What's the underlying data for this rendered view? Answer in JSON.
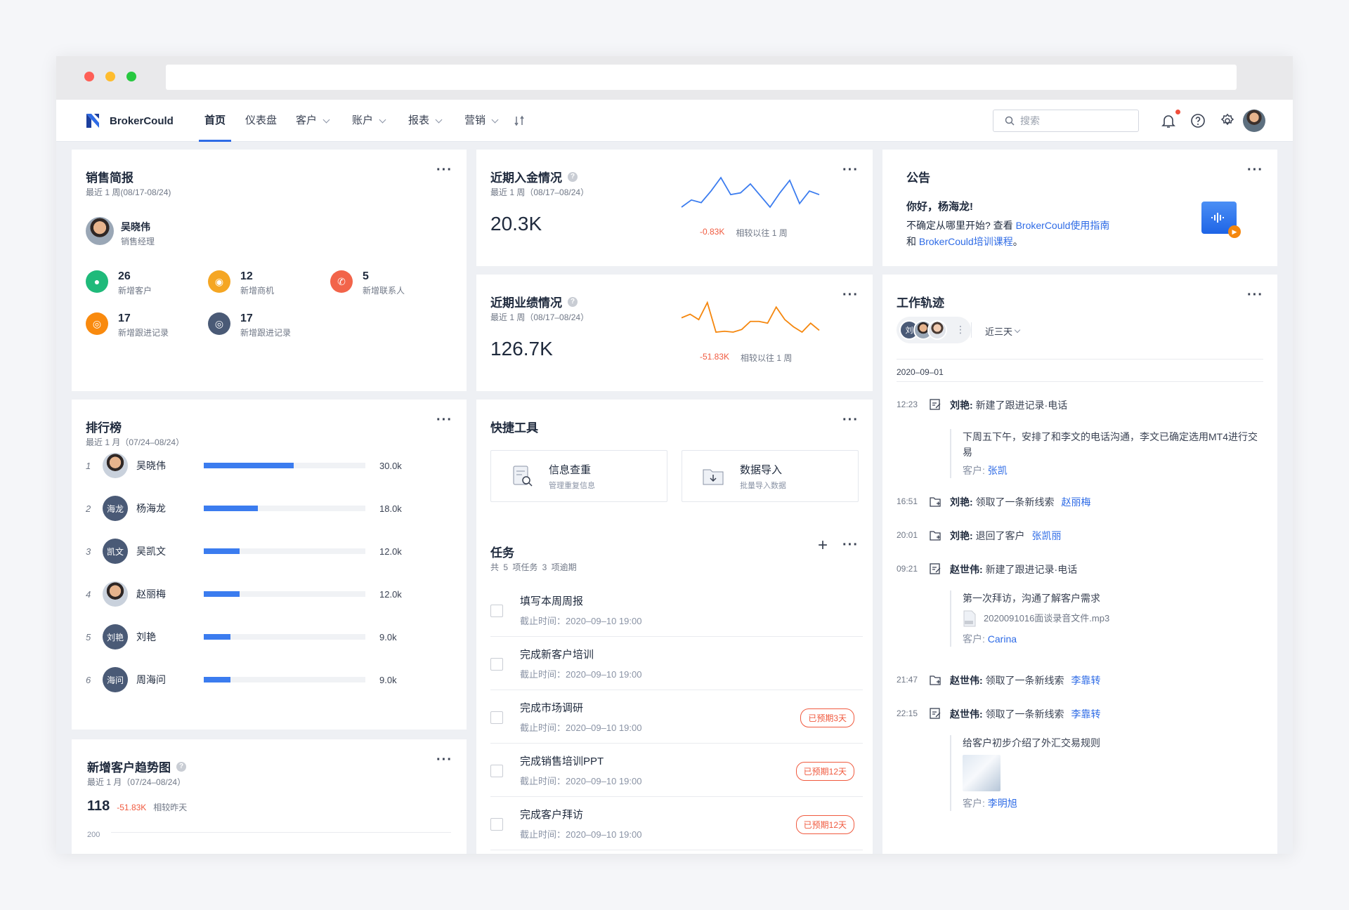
{
  "nav": {
    "brand": "BrokerCould",
    "items": [
      {
        "label": "首页"
      },
      {
        "label": "仪表盘"
      },
      {
        "label": "客户"
      },
      {
        "label": "账户"
      },
      {
        "label": "报表"
      },
      {
        "label": "营销"
      }
    ],
    "search_placeholder": "搜索"
  },
  "sales": {
    "title": "销售简报",
    "subtitle": "最近 1 周(08/17-08/24)",
    "person_name": "吴晓伟",
    "person_role": "销售经理",
    "stats": [
      {
        "value": "26",
        "label": "新增客户",
        "color": "#1fba7a",
        "icon": "user-group-icon"
      },
      {
        "value": "12",
        "label": "新增商机",
        "color": "#f5a623",
        "icon": "lightbulb-icon"
      },
      {
        "value": "5",
        "label": "新增联系人",
        "color": "#f2644a",
        "icon": "phone-icon"
      },
      {
        "value": "17",
        "label": "新增跟进记录",
        "color": "#f98a0e",
        "icon": "pin-icon"
      },
      {
        "value": "17",
        "label": "新增跟进记录",
        "color": "#4a5a76",
        "icon": "pin-icon"
      }
    ]
  },
  "deposit": {
    "title": "近期入金情况",
    "subtitle": "最近 1 周（08/17–08/24）",
    "value": "20.3K",
    "delta": "-0.83K",
    "compare": "相较以往 1 周",
    "color": "#3b7cef",
    "spark": [
      38,
      30,
      33,
      20,
      5,
      24,
      22,
      12,
      25,
      38,
      22,
      8,
      34,
      20,
      24
    ]
  },
  "performance": {
    "title": "近期业绩情况",
    "subtitle": "最近 1 周（08/17–08/24）",
    "value": "126.7K",
    "delta": "-51.83K",
    "compare": "相较以往 1 周",
    "color": "#f5870e",
    "spark": [
      22,
      18,
      24,
      5,
      38,
      37,
      38,
      35,
      26,
      26,
      28,
      10,
      24,
      32,
      38,
      28,
      36
    ]
  },
  "notice": {
    "title": "公告",
    "greeting": "你好，杨海龙!",
    "line1": "不确定从哪里开始? 查看",
    "link1": "BrokerCould使用指南",
    "line2": "和",
    "link2": "BrokerCould培训课程",
    "line2_end": "。"
  },
  "ranking": {
    "title": "排行榜",
    "subtitle": "最近 1 月（07/24–08/24）",
    "rows": [
      {
        "no": "1",
        "avatar": "",
        "name": "吴晓伟",
        "value": "30.0k",
        "score": 30.0
      },
      {
        "no": "2",
        "avatar": "海龙",
        "name": "杨海龙",
        "value": "18.0k",
        "score": 18.0
      },
      {
        "no": "3",
        "avatar": "凯文",
        "name": "吴凯文",
        "value": "12.0k",
        "score": 12.0
      },
      {
        "no": "4",
        "avatar": "",
        "name": "赵丽梅",
        "value": "12.0k",
        "score": 12.0
      },
      {
        "no": "5",
        "avatar": "刘艳",
        "name": "刘艳",
        "value": "9.0k",
        "score": 9.0
      },
      {
        "no": "6",
        "avatar": "海问",
        "name": "周海问",
        "value": "9.0k",
        "score": 9.0
      }
    ]
  },
  "tools": {
    "title": "快捷工具",
    "items": [
      {
        "title": "信息查重",
        "sub": "管理重复信息"
      },
      {
        "title": "数据导入",
        "sub": "批量导入数据"
      }
    ]
  },
  "tasks": {
    "title": "任务",
    "summary": "共 5 项任务   3 项逾期",
    "items": [
      {
        "title": "填写本周周报",
        "deadline": "截止时间：2020–09–10 19:00",
        "overdue": ""
      },
      {
        "title": "完成新客户培训",
        "deadline": "截止时间：2020–09–10 19:00",
        "overdue": ""
      },
      {
        "title": "完成市场调研",
        "deadline": "截止时间：2020–09–10 19:00",
        "overdue": "已预期3天"
      },
      {
        "title": "完成销售培训PPT",
        "deadline": "截止时间：2020–09–10 19:00",
        "overdue": "已预期12天"
      },
      {
        "title": "完成客户拜访",
        "deadline": "截止时间：2020–09–10 19:00",
        "overdue": "已预期12天"
      }
    ]
  },
  "trend": {
    "title": "新增客户趋势图",
    "subtitle": "最近 1 月（07/24–08/24）",
    "value": "118",
    "delta": "-51.83K",
    "compare": "相较昨天",
    "axis_top": "200"
  },
  "tracks": {
    "title": "工作轨迹",
    "avatar_first": "刘",
    "range": "近三天",
    "date": "2020–09–01",
    "events": [
      {
        "time": "12:23",
        "who": "刘艳:",
        "text": "新建了跟进记录·电话",
        "link": ""
      },
      {
        "time": "16:51",
        "who": "刘艳:",
        "text": "领取了一条新线索",
        "link": "赵丽梅"
      },
      {
        "time": "20:01",
        "who": "刘艳:",
        "text": "退回了客户",
        "link": "张凯丽"
      },
      {
        "time": "09:21",
        "who": "赵世伟:",
        "text": "新建了跟进记录·电话",
        "link": ""
      },
      {
        "time": "21:47",
        "who": "赵世伟:",
        "text": "领取了一条新线索",
        "link": "李靠转"
      },
      {
        "time": "22:15",
        "who": "赵世伟:",
        "text": "领取了一条新线索",
        "link": "李靠转"
      }
    ],
    "detail1": "下周五下午，安排了和李文的电话沟通，李文已确定选用MT4进行交易",
    "detail1_cust_label": "客户:",
    "detail1_cust": "张凯",
    "detail2": "第一次拜访，沟通了解客户需求",
    "detail2_file": "2020091016面谈录音文件.mp3",
    "detail2_cust_label": "客户:",
    "detail2_cust": "Carina",
    "detail3": "给客户初步介绍了外汇交易规则",
    "detail3_cust_label": "客户:",
    "detail3_cust": "李明旭"
  }
}
